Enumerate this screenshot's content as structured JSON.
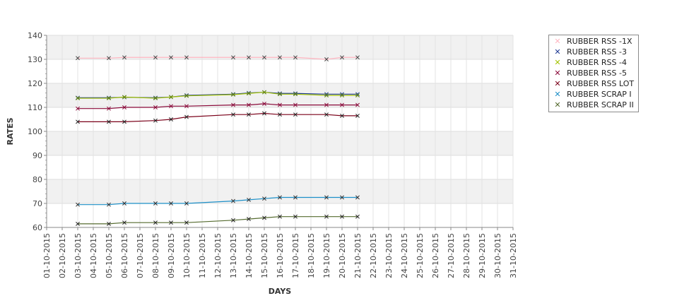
{
  "chart_data": {
    "type": "line",
    "xlabel": "DAYS",
    "ylabel": "RATES",
    "ylim": [
      60,
      140
    ],
    "yticks": [
      60,
      70,
      80,
      90,
      100,
      110,
      120,
      130,
      140
    ],
    "grid": true,
    "legend_position": "top-right",
    "categories": [
      "01-10-2015",
      "02-10-2015",
      "03-10-2015",
      "04-10-2015",
      "05-10-2015",
      "06-10-2015",
      "07-10-2015",
      "08-10-2015",
      "09-10-2015",
      "10-10-2015",
      "11-10-2015",
      "12-10-2015",
      "13-10-2015",
      "14-10-2015",
      "15-10-2015",
      "16-10-2015",
      "17-10-2015",
      "18-10-2015",
      "19-10-2015",
      "20-10-2015",
      "21-10-2015",
      "22-10-2015",
      "23-10-2015",
      "24-10-2015",
      "25-10-2015",
      "26-10-2015",
      "27-10-2015",
      "28-10-2015",
      "29-10-2015",
      "30-10-2015",
      "31-10-2015"
    ],
    "series": [
      {
        "name": "RUBBER RSS -1X",
        "color": "#ffb6c1",
        "marker_color": "#444444",
        "x": [
          "03-10-2015",
          "05-10-2015",
          "06-10-2015",
          "08-10-2015",
          "09-10-2015",
          "10-10-2015",
          "13-10-2015",
          "14-10-2015",
          "15-10-2015",
          "16-10-2015",
          "17-10-2015",
          "19-10-2015",
          "20-10-2015",
          "21-10-2015"
        ],
        "values": [
          130.5,
          130.5,
          130.8,
          130.8,
          130.8,
          130.8,
          130.8,
          130.8,
          130.8,
          130.8,
          130.8,
          130,
          130.8,
          130.8
        ]
      },
      {
        "name": "RUBBER RSS -3",
        "color": "#1f3a93",
        "marker_color": "#1f3a93",
        "x": [
          "03-10-2015",
          "05-10-2015",
          "06-10-2015",
          "08-10-2015",
          "09-10-2015",
          "10-10-2015",
          "13-10-2015",
          "14-10-2015",
          "15-10-2015",
          "16-10-2015",
          "17-10-2015",
          "19-10-2015",
          "20-10-2015",
          "21-10-2015"
        ],
        "values": [
          114,
          114,
          114.2,
          114,
          114.3,
          115,
          115.5,
          116,
          116.3,
          115.8,
          115.8,
          115.5,
          115.5,
          115.5
        ]
      },
      {
        "name": "RUBBER RSS -4",
        "color": "#a4c400",
        "marker_color": "#6b8e00",
        "x": [
          "03-10-2015",
          "05-10-2015",
          "06-10-2015",
          "08-10-2015",
          "09-10-2015",
          "10-10-2015",
          "13-10-2015",
          "14-10-2015",
          "15-10-2015",
          "16-10-2015",
          "17-10-2015",
          "19-10-2015",
          "20-10-2015",
          "21-10-2015"
        ],
        "values": [
          113.8,
          113.8,
          114.3,
          113.8,
          114.3,
          114.8,
          115.3,
          115.8,
          116.3,
          115.5,
          115.5,
          115,
          115,
          115
        ]
      },
      {
        "name": "RUBBER RSS -5",
        "color": "#8b0a3a",
        "marker_color": "#8b0a3a",
        "x": [
          "03-10-2015",
          "05-10-2015",
          "06-10-2015",
          "08-10-2015",
          "09-10-2015",
          "10-10-2015",
          "13-10-2015",
          "14-10-2015",
          "15-10-2015",
          "16-10-2015",
          "17-10-2015",
          "19-10-2015",
          "20-10-2015",
          "21-10-2015"
        ],
        "values": [
          109.5,
          109.5,
          110,
          110,
          110.5,
          110.5,
          111,
          111,
          111.5,
          111,
          111,
          111,
          111,
          111
        ]
      },
      {
        "name": "RUBBER RSS LOT",
        "color": "#7a0019",
        "marker_color": "#222222",
        "x": [
          "03-10-2015",
          "05-10-2015",
          "06-10-2015",
          "08-10-2015",
          "09-10-2015",
          "10-10-2015",
          "13-10-2015",
          "14-10-2015",
          "15-10-2015",
          "16-10-2015",
          "17-10-2015",
          "19-10-2015",
          "20-10-2015",
          "21-10-2015"
        ],
        "values": [
          104,
          104,
          104,
          104.5,
          105,
          106,
          107,
          107,
          107.5,
          107,
          107,
          107,
          106.5,
          106.5
        ]
      },
      {
        "name": "RUBBER SCRAP I",
        "color": "#1e90c8",
        "marker_color": "#333333",
        "x": [
          "03-10-2015",
          "05-10-2015",
          "06-10-2015",
          "08-10-2015",
          "09-10-2015",
          "10-10-2015",
          "13-10-2015",
          "14-10-2015",
          "15-10-2015",
          "16-10-2015",
          "17-10-2015",
          "19-10-2015",
          "20-10-2015",
          "21-10-2015"
        ],
        "values": [
          69.5,
          69.5,
          70,
          70,
          70,
          70,
          71,
          71.5,
          72,
          72.5,
          72.5,
          72.5,
          72.5,
          72.5
        ]
      },
      {
        "name": "RUBBER SCRAP II",
        "color": "#556b2f",
        "marker_color": "#222222",
        "x": [
          "03-10-2015",
          "05-10-2015",
          "06-10-2015",
          "08-10-2015",
          "09-10-2015",
          "10-10-2015",
          "13-10-2015",
          "14-10-2015",
          "15-10-2015",
          "16-10-2015",
          "17-10-2015",
          "19-10-2015",
          "20-10-2015",
          "21-10-2015"
        ],
        "values": [
          61.5,
          61.5,
          62,
          62,
          62,
          62,
          63,
          63.5,
          64,
          64.5,
          64.5,
          64.5,
          64.5,
          64.5
        ]
      }
    ]
  }
}
